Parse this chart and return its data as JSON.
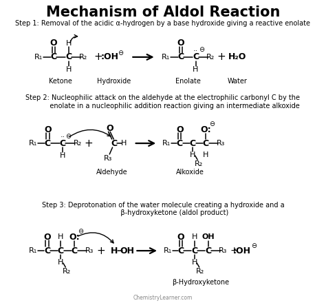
{
  "title": "Mechanism of Aldol Reaction",
  "background_color": "#ffffff",
  "step1_desc": "Step 1: Removal of the acidic α-hydrogen by a base hydroxide giving a reactive enolate",
  "step2_desc_line1": "Step 2: Nucleophilic attack on the aldehyde at the electrophilic carbonyl C by the",
  "step2_desc_line2": "           enolate in a nucleophilic addition reaction giving an intermediate alkoxide",
  "step3_desc_line1": "Step 3: Deprotonation of the water molecule creating a hydroxide and a",
  "step3_desc_line2": "           β-hydroxyketone (aldol product)",
  "watermark": "ChemistryLearner.com",
  "label_ketone": "Ketone",
  "label_hydroxide": "Hydroxide",
  "label_enolate": "Enolate",
  "label_water": "Water",
  "label_aldehyde": "Aldehyde",
  "label_alkoxide": "Alkoxide",
  "label_betahydroxy": "β-Hydroxyketone"
}
